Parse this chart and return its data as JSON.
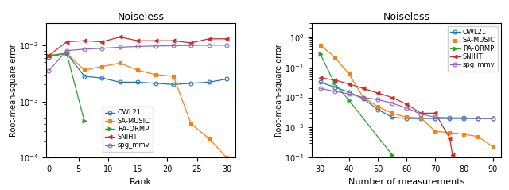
{
  "title": "Noiseless",
  "left_xlabel": "Rank",
  "right_xlabel": "Number of measurements",
  "ylabel": "Root-mean-square error",
  "left_xlim": [
    -0.5,
    31.5
  ],
  "left_ylim": [
    0.0001,
    0.025
  ],
  "right_xlim": [
    27,
    93
  ],
  "right_ylim": [
    0.0001,
    3.0
  ],
  "legend_labels": [
    "OWL21",
    "SA-MUSIC",
    "RA-ORMP",
    "SNIHT",
    "spg_mmv"
  ],
  "colors": [
    "#1f77b4",
    "#ff7f0e",
    "#2ca02c",
    "#d62728",
    "#9467bd"
  ],
  "markers": [
    "o",
    "s",
    ">",
    "<",
    "o"
  ],
  "markerfilled": [
    false,
    true,
    true,
    true,
    false
  ],
  "left_data": {
    "OWL21": {
      "x": [
        0,
        3,
        6,
        9,
        12,
        15,
        18,
        21,
        24,
        27,
        30
      ],
      "y": [
        0.0062,
        0.0072,
        0.0028,
        0.0026,
        0.0022,
        0.0022,
        0.0021,
        0.002,
        0.0021,
        0.0022,
        0.0025
      ]
    },
    "SA-MUSIC": {
      "x": [
        0,
        3,
        6,
        9,
        12,
        15,
        18,
        21,
        24,
        27,
        30
      ],
      "y": [
        0.0065,
        0.0072,
        0.0036,
        0.0042,
        0.0048,
        0.0036,
        0.003,
        0.0028,
        0.0004,
        0.00022,
        0.0001
      ]
    },
    "RA-ORMP": {
      "x": [
        0,
        3,
        6
      ],
      "y": [
        0.0065,
        0.0072,
        0.00045
      ]
    },
    "SNIHT": {
      "x": [
        0,
        3,
        6,
        9,
        12,
        15,
        18,
        21,
        24,
        27,
        30
      ],
      "y": [
        0.0065,
        0.0115,
        0.012,
        0.0115,
        0.014,
        0.012,
        0.012,
        0.012,
        0.011,
        0.013,
        0.013
      ]
    },
    "spg_mmv": {
      "x": [
        0,
        3,
        6,
        9,
        12,
        15,
        18,
        21,
        24,
        27,
        30
      ],
      "y": [
        0.0035,
        0.008,
        0.0085,
        0.0088,
        0.0092,
        0.0095,
        0.0097,
        0.0098,
        0.0099,
        0.01,
        0.01
      ]
    }
  },
  "right_data": {
    "OWL21": {
      "x": [
        30,
        35,
        40,
        45,
        50,
        55,
        60,
        65,
        70,
        75,
        80,
        85,
        90
      ],
      "y": [
        0.032,
        0.022,
        0.015,
        0.009,
        0.004,
        0.0022,
        0.002,
        0.002,
        0.002,
        0.002,
        0.002,
        0.002,
        0.002
      ]
    },
    "SA-MUSIC": {
      "x": [
        30,
        35,
        40,
        45,
        50,
        55,
        60,
        65,
        70,
        75,
        80,
        85,
        90
      ],
      "y": [
        0.55,
        0.22,
        0.06,
        0.01,
        0.005,
        0.003,
        0.0022,
        0.0021,
        0.00075,
        0.00068,
        0.0006,
        0.0005,
        0.00023
      ]
    },
    "RA-ORMP": {
      "x": [
        30,
        35,
        40,
        55
      ],
      "y": [
        0.28,
        0.03,
        0.008,
        0.000125
      ]
    },
    "SNIHT": {
      "x": [
        30,
        35,
        40,
        45,
        50,
        55,
        60,
        65,
        70,
        75,
        76
      ],
      "y": [
        0.045,
        0.038,
        0.028,
        0.02,
        0.014,
        0.01,
        0.006,
        0.003,
        0.003,
        0.00045,
        0.000125
      ]
    },
    "spg_mmv": {
      "x": [
        30,
        35,
        40,
        45,
        50,
        55,
        60,
        65,
        70,
        75,
        80,
        85,
        90
      ],
      "y": [
        0.02,
        0.016,
        0.013,
        0.01,
        0.0085,
        0.0065,
        0.0045,
        0.0028,
        0.0022,
        0.0021,
        0.0021,
        0.002,
        0.002
      ]
    }
  }
}
